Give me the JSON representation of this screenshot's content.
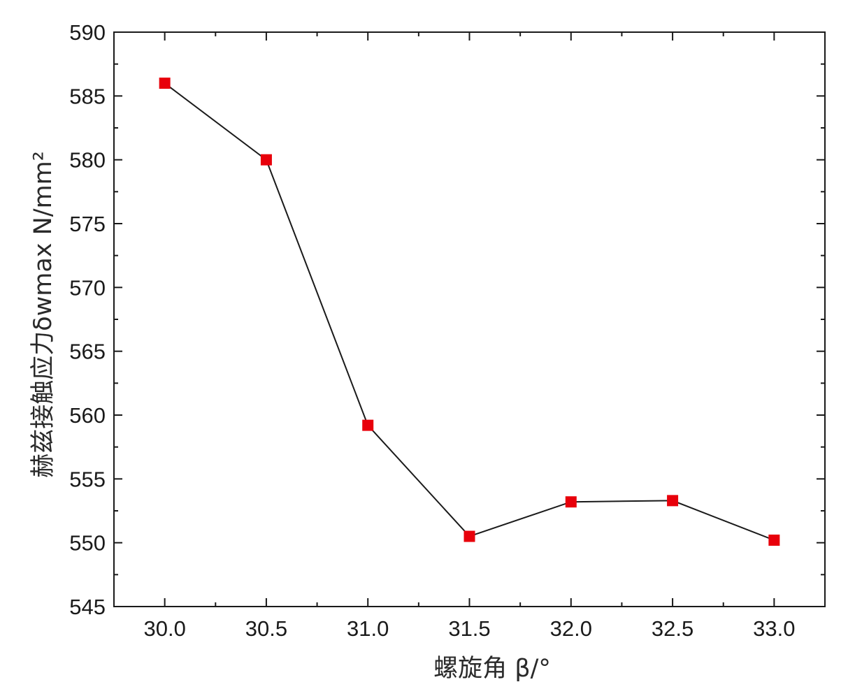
{
  "chart_data": {
    "type": "line",
    "x": [
      30.0,
      30.5,
      31.0,
      31.5,
      32.0,
      32.5,
      33.0
    ],
    "series": [
      {
        "values": [
          586.0,
          580.0,
          559.2,
          550.5,
          553.2,
          553.3,
          550.2
        ],
        "line_color": "#1a1a1a",
        "marker": "square",
        "marker_color": "#e8000b"
      }
    ],
    "xlabel": "螺旋角 β/°",
    "ylabel": "赫兹接触应力δwmax N/mm²",
    "xlim": [
      29.75,
      33.25
    ],
    "ylim": [
      545,
      590
    ],
    "x_ticks": [
      "30.0",
      "30.5",
      "31.0",
      "31.5",
      "32.0",
      "32.5",
      "33.0"
    ],
    "y_ticks": [
      "545",
      "550",
      "555",
      "560",
      "565",
      "570",
      "575",
      "580",
      "585",
      "590"
    ],
    "grid": false
  }
}
